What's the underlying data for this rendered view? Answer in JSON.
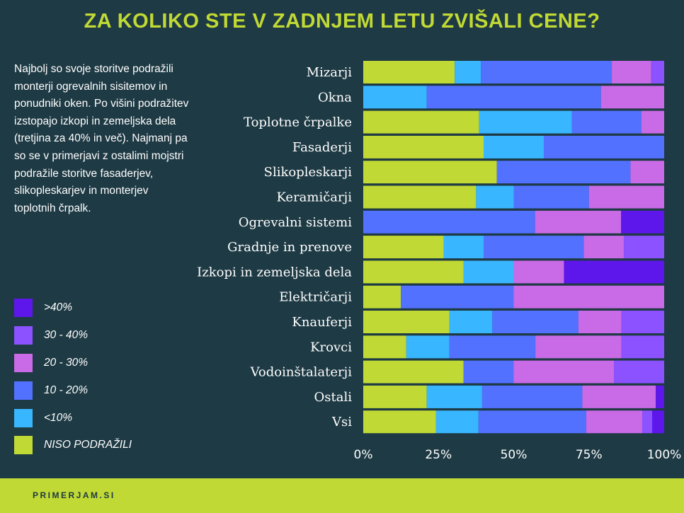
{
  "title": "ZA KOLIKO STE V ZADNJEM LETU ZVIŠALI CENE?",
  "description": "Najbolj so svoje storitve podražili monterji ogrevalnih sisitemov in ponudniki oken. Po višini podražitev izstopajo izkopi in zemeljska dela (tretjina za 40% in več). Najmanj pa so se v primerjavi z ostalimi mojstri podražile storitve fasaderjev, slikopleskarjev in monterjev toplotnih črpalk.",
  "footer": "PRIMERJAM.SI",
  "chart_data": {
    "type": "bar",
    "orientation": "horizontal",
    "stacked": "100%",
    "categories": [
      "Mizarji",
      "Okna",
      "Toplotne črpalke",
      "Fasaderji",
      "Slikopleskarji",
      "Keramičarji",
      "Ogrevalni sistemi",
      "Gradnje in prenove",
      "Izkopi in zemeljska dela",
      "Električarji",
      "Knauferji",
      "Krovci",
      "Vodoinštalaterji",
      "Ostali",
      "Vsi"
    ],
    "series": [
      {
        "name": "NISO PODRAŽILI",
        "color": "#c1d934",
        "values": [
          30.4,
          0,
          38.5,
          40,
          44.4,
          37.5,
          0,
          26.7,
          33.3,
          12.5,
          28.6,
          14.3,
          33.3,
          21.1,
          24.2
        ]
      },
      {
        "name": "<10%",
        "color": "#38b6ff",
        "values": [
          8.7,
          21.1,
          30.8,
          20,
          0,
          12.5,
          0,
          13.3,
          16.7,
          0,
          14.3,
          14.3,
          0,
          18.4,
          14.1
        ]
      },
      {
        "name": "10 - 20%",
        "color": "#5271ff",
        "values": [
          43.5,
          57.9,
          23.1,
          40,
          44.4,
          25,
          57.1,
          33.3,
          0,
          37.5,
          28.6,
          28.6,
          16.7,
          33.3,
          35.8
        ]
      },
      {
        "name": "20 - 30%",
        "color": "#c96ae6",
        "values": [
          13.1,
          21.0,
          7.6,
          0,
          11.2,
          25,
          28.6,
          13.3,
          16.7,
          50,
          14.3,
          28.6,
          33.3,
          24.4,
          18.6
        ]
      },
      {
        "name": "30 - 40%",
        "color": "#8c52ff",
        "values": [
          4.3,
          0,
          0,
          0,
          0,
          0,
          0,
          13.4,
          0,
          0,
          14.2,
          14.2,
          16.7,
          0,
          3.3
        ]
      },
      {
        "name": ">40%",
        "color": "#5e17eb",
        "values": [
          0,
          0,
          0,
          0,
          0,
          0,
          14.3,
          0,
          33.3,
          0,
          0,
          0,
          0,
          2.8,
          4.0
        ]
      }
    ],
    "xticks": [
      "0%",
      "25%",
      "50%",
      "75%",
      "100%"
    ],
    "xlim": [
      0,
      100
    ],
    "legend": "left",
    "legend_order": [
      ">40%",
      "30 - 40%",
      "20 - 30%",
      "10 - 20%",
      "<10%",
      "NISO PODRAŽILI"
    ]
  }
}
